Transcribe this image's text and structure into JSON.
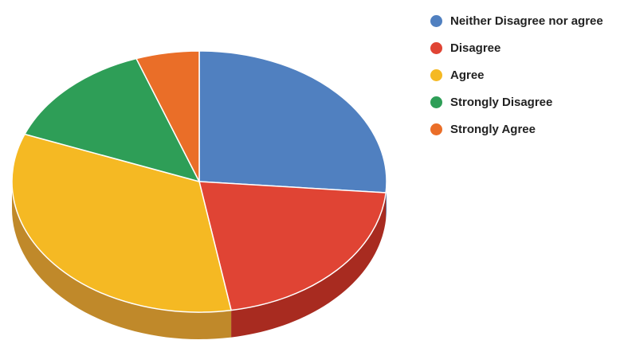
{
  "chart_data": {
    "type": "pie",
    "style": "3d",
    "categories": [
      "Neither Disagree nor agree",
      "Disagree",
      "Agree",
      "Strongly Disagree",
      "Strongly Agree"
    ],
    "values": [
      29,
      23,
      37,
      15,
      6
    ],
    "colors": [
      "#5080c0",
      "#e04434",
      "#f5b923",
      "#2e9e57",
      "#ea6e28"
    ],
    "side_colors": [
      "#3d6298",
      "#a82b20",
      "#c0892a",
      "#1f7a42",
      "#b85620"
    ],
    "legend_position": "right",
    "title": ""
  }
}
